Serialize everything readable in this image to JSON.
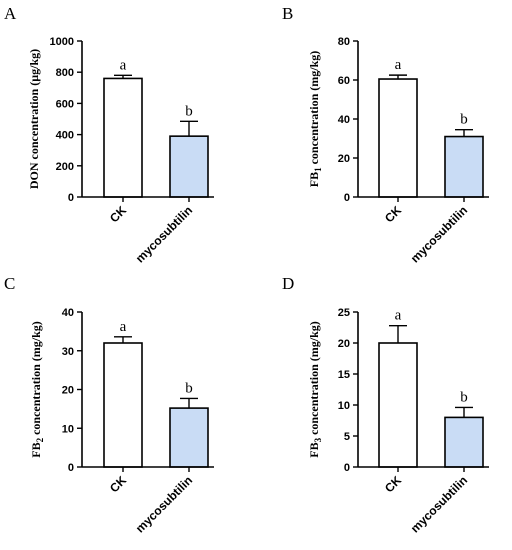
{
  "chart_data": [
    {
      "panel": "A",
      "type": "bar",
      "ylabel": "DON concentration (µg/kg)",
      "ylabel_base": "DON concentration (µg/kg)",
      "ylabel_sub": "",
      "ylabel_rest": "",
      "categories": [
        "CK",
        "mycosubtilin"
      ],
      "values": [
        760,
        390
      ],
      "errors": [
        20,
        95
      ],
      "significance": [
        "a",
        "b"
      ],
      "ylim": [
        0,
        1000
      ],
      "yticks": [
        0,
        200,
        400,
        600,
        800,
        1000
      ],
      "bar_colors": [
        "#ffffff",
        "#c9dcf5"
      ]
    },
    {
      "panel": "B",
      "type": "bar",
      "ylabel": "FB1 concentration (mg/kg)",
      "ylabel_base": "FB",
      "ylabel_sub": "1",
      "ylabel_rest": " concentration (mg/kg)",
      "categories": [
        "CK",
        "mycosubtilin"
      ],
      "values": [
        60.5,
        31
      ],
      "errors": [
        2,
        3.5
      ],
      "significance": [
        "a",
        "b"
      ],
      "ylim": [
        0,
        80
      ],
      "yticks": [
        0,
        20,
        40,
        60,
        80
      ],
      "bar_colors": [
        "#ffffff",
        "#c9dcf5"
      ]
    },
    {
      "panel": "C",
      "type": "bar",
      "ylabel": "FB2 concentration (mg/kg)",
      "ylabel_base": "FB",
      "ylabel_sub": "2",
      "ylabel_rest": " concentration (mg/kg)",
      "categories": [
        "CK",
        "mycosubtilin"
      ],
      "values": [
        32,
        15.2
      ],
      "errors": [
        1.6,
        2.5
      ],
      "significance": [
        "a",
        "b"
      ],
      "ylim": [
        0,
        40
      ],
      "yticks": [
        0,
        10,
        20,
        30,
        40
      ],
      "bar_colors": [
        "#ffffff",
        "#c9dcf5"
      ]
    },
    {
      "panel": "D",
      "type": "bar",
      "ylabel": "FB3 concentration (mg/kg)",
      "ylabel_base": "FB",
      "ylabel_sub": "3",
      "ylabel_rest": " concentration (mg/kg)",
      "categories": [
        "CK",
        "mycosubtilin"
      ],
      "values": [
        20,
        8
      ],
      "errors": [
        2.8,
        1.6
      ],
      "significance": [
        "a",
        "b"
      ],
      "ylim": [
        0,
        25
      ],
      "yticks": [
        0,
        5,
        10,
        15,
        20,
        25
      ],
      "bar_colors": [
        "#ffffff",
        "#c9dcf5"
      ]
    }
  ]
}
